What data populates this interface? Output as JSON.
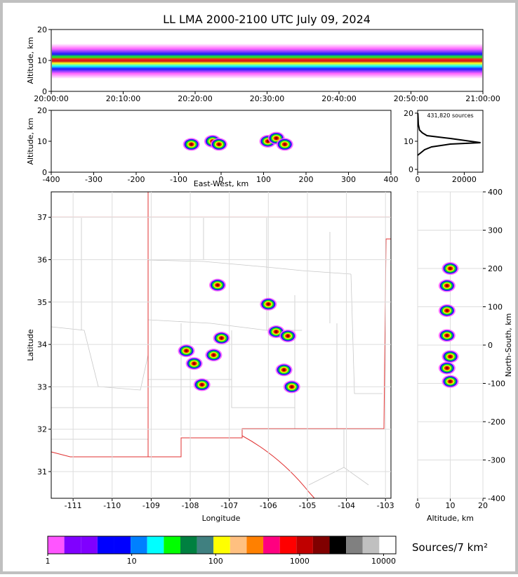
{
  "chart_data": [
    {
      "type": "density",
      "title": "LL LMA 2000-2100 UTC July 09, 2024",
      "ylabel": "Altitude, km",
      "xlim": [
        0,
        60
      ],
      "xticks": [
        {
          "value": 0,
          "label": "20:00:00"
        },
        {
          "value": 10,
          "label": "20:10:00"
        },
        {
          "value": 20,
          "label": "20:20:00"
        },
        {
          "value": 30,
          "label": "20:30:00"
        },
        {
          "value": 40,
          "label": "20:40:00"
        },
        {
          "value": 50,
          "label": "20:50:00"
        },
        {
          "value": 60,
          "label": "21:00:00"
        }
      ],
      "ylim": [
        0,
        20
      ],
      "yticks": [
        0,
        10,
        20
      ]
    },
    {
      "type": "scatter",
      "ylabel": "Altitude, km",
      "xlabel": "East-West, km",
      "xlim": [
        -400,
        400
      ],
      "xticks": [
        -400,
        -300,
        -200,
        -100,
        0,
        100,
        200,
        300,
        400
      ],
      "ylim": [
        0,
        20
      ],
      "yticks": [
        0,
        10,
        20
      ],
      "x": [
        -70,
        -20,
        -5,
        110,
        130,
        150
      ],
      "values": [
        9,
        10,
        9,
        10,
        11,
        9
      ]
    },
    {
      "type": "line",
      "annotation": "431,820 sources",
      "xlim": [
        0,
        28000
      ],
      "xticks": [
        0,
        20000
      ],
      "ylim": [
        -1,
        21
      ],
      "yticks": [
        0,
        10,
        20
      ],
      "x": [
        0,
        1500,
        3000,
        6000,
        14000,
        27000,
        14000,
        4000,
        2000,
        800,
        300,
        100
      ],
      "values": [
        5,
        6,
        7,
        8,
        9,
        9.5,
        11,
        12,
        13,
        14,
        16,
        20
      ]
    },
    {
      "type": "scatter",
      "xlabel": "Longitude",
      "ylabel": "Latitude",
      "xlim": [
        -111.56,
        -102.86
      ],
      "xticks": [
        -111,
        -110,
        -109,
        -108,
        -107,
        -106,
        -105,
        -104,
        -103
      ],
      "ylim": [
        30.37,
        37.6
      ],
      "yticks": [
        31,
        32,
        33,
        34,
        35,
        36,
        37
      ],
      "x": [
        -107.9,
        -107.7,
        -107.4,
        -107.2,
        -108.1,
        -105.8,
        -105.5,
        -105.6,
        -105.4,
        -107.3,
        -106.0
      ],
      "values": [
        33.55,
        33.05,
        33.75,
        34.15,
        33.85,
        34.3,
        34.2,
        33.4,
        33.0,
        35.4,
        34.95
      ]
    },
    {
      "type": "scatter",
      "xlabel": "Altitude, km",
      "ylabel": "North-South, km",
      "xlim": [
        0,
        20
      ],
      "xticks": [
        0,
        10,
        20
      ],
      "ylim": [
        -400,
        400
      ],
      "yticks": [
        -400,
        -300,
        -200,
        -100,
        0,
        100,
        200,
        300,
        400
      ],
      "x": [
        9,
        10,
        10,
        9,
        9,
        10,
        9
      ],
      "values": [
        25,
        -30,
        -95,
        90,
        155,
        200,
        -60
      ]
    },
    {
      "type": "colorbar",
      "label": "Sources/7 km²",
      "xlim": [
        1,
        14000
      ],
      "xticks": [
        1,
        10,
        100,
        1000,
        10000
      ],
      "colors": [
        "#ff55ff",
        "#8000ff",
        "#8000ff",
        "#0000ff",
        "#0000ff",
        "#0080ff",
        "#00ffff",
        "#00ff00",
        "#008040",
        "#408080",
        "#ffff00",
        "#ffc080",
        "#ff8000",
        "#ff0080",
        "#ff0000",
        "#c00000",
        "#800000",
        "#000000",
        "#808080",
        "#c0c0c0",
        "#ffffff"
      ]
    }
  ]
}
